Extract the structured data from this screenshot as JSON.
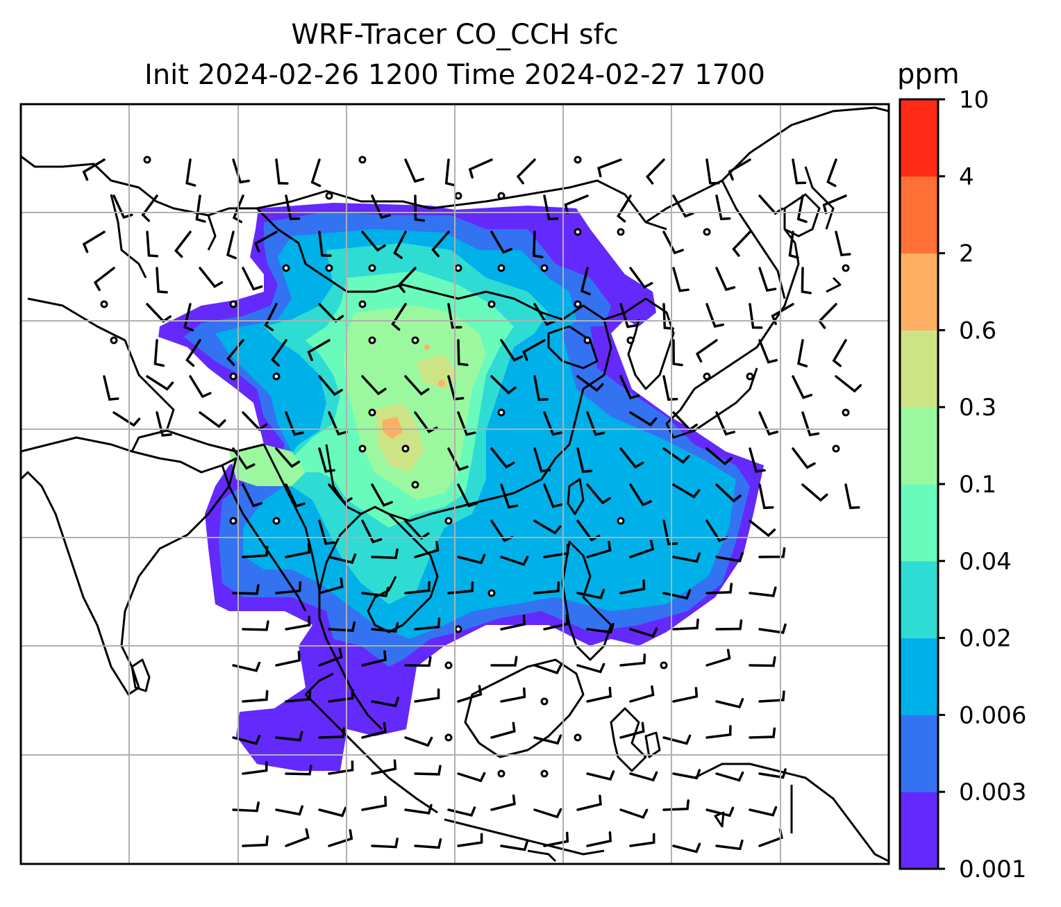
{
  "title": {
    "line1": "WRF-Tracer CO_CCH sfc",
    "line2": "Init 2024-02-26 1200 Time 2024-02-27 1700"
  },
  "colorbar": {
    "unit": "ppm",
    "levels": [
      "0.001",
      "0.003",
      "0.006",
      "0.02",
      "0.04",
      "0.1",
      "0.3",
      "0.6",
      "2",
      "4",
      "10"
    ],
    "colors": [
      "#6429fb",
      "#3373f2",
      "#00b0e9",
      "#2edcd4",
      "#68fbbc",
      "#9cf89f",
      "#cde486",
      "#fdb063",
      "#fe7035",
      "#ff2a16"
    ]
  },
  "map": {
    "field": "CO_CCH surface concentration with wind barbs",
    "grid": "on",
    "coastline_color": "#000000",
    "grid_color": "#b0b0b0",
    "calm_marker": "circle"
  }
}
